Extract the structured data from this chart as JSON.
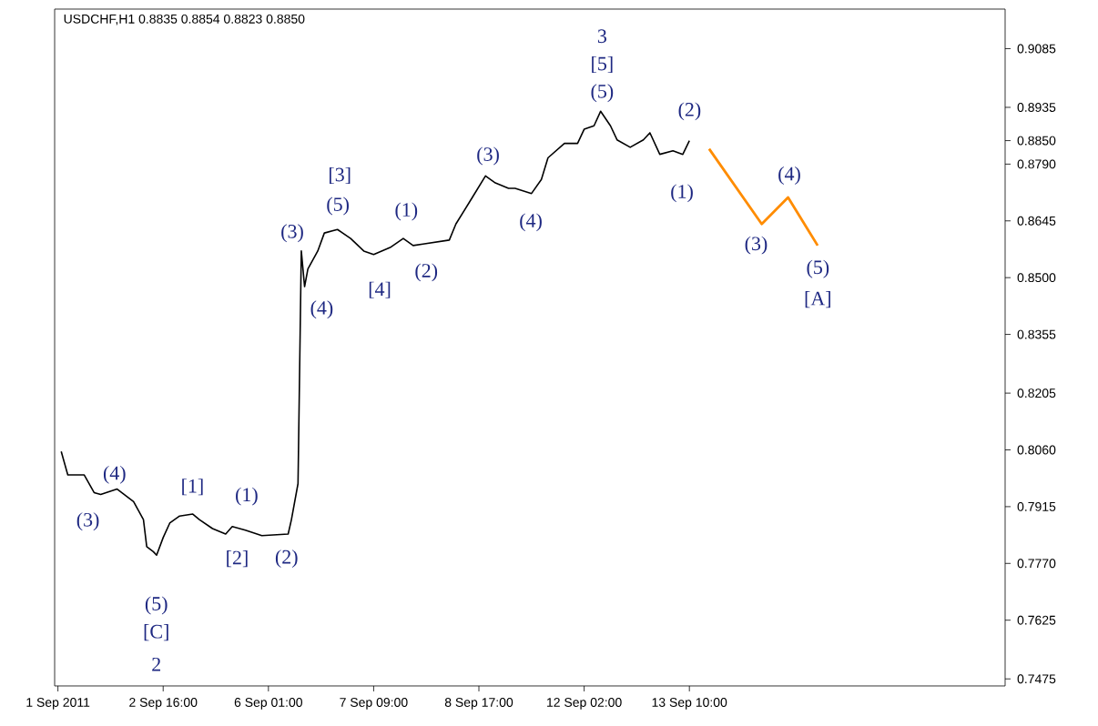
{
  "chart_data": {
    "type": "line",
    "title": "USDCHF,H1 0.8835 0.8854 0.8823 0.8850",
    "categories": [
      "1 Sep 2011",
      null,
      null,
      null,
      null,
      null,
      null,
      null,
      null,
      null,
      null,
      null,
      null,
      null,
      null,
      null,
      null,
      null,
      null,
      null,
      null,
      null,
      null,
      null,
      null,
      null,
      null,
      null,
      null,
      null,
      null,
      null,
      "2 Sep 16:00",
      null,
      null,
      null,
      null,
      null,
      null,
      null,
      null,
      null,
      null,
      null,
      null,
      null,
      null,
      null,
      null,
      null,
      null,
      null,
      null,
      null,
      null,
      null,
      null,
      null,
      null,
      null,
      null,
      null,
      null,
      null,
      "6 Sep 01:00",
      null,
      null,
      null,
      null,
      null,
      null,
      null,
      null,
      null,
      null,
      null,
      null,
      null,
      null,
      null,
      null,
      null,
      null,
      null,
      null,
      null,
      null,
      null,
      null,
      null,
      null,
      null,
      null,
      null,
      null,
      null,
      "7 Sep 09:00",
      null,
      null,
      null,
      null,
      null,
      null,
      null,
      null,
      null,
      null,
      null,
      null,
      null,
      null,
      null,
      null,
      null,
      null,
      null,
      null,
      null,
      null,
      null,
      null,
      null,
      null,
      null,
      null,
      null,
      null,
      null,
      "8 Sep 17:00",
      null,
      null,
      null,
      null,
      null,
      null,
      null,
      null,
      null,
      null,
      null,
      null,
      null,
      null,
      null,
      null,
      null,
      null,
      null,
      null,
      null,
      null,
      null,
      null,
      null,
      null,
      null,
      null,
      null,
      null,
      null,
      "12 Sep 02:00",
      null,
      null,
      null,
      null,
      null,
      null,
      null,
      null,
      null,
      null,
      null,
      null,
      null,
      null,
      null,
      null,
      null,
      null,
      null,
      null,
      null,
      null,
      null,
      null,
      null,
      null,
      null,
      null,
      null,
      null,
      null,
      "13 Sep 10:00",
      null,
      null,
      null,
      null,
      null,
      null,
      null,
      null,
      null,
      null,
      null,
      null,
      null,
      null,
      null,
      null,
      null,
      null,
      null,
      null,
      null,
      null,
      null,
      null,
      null,
      null,
      null,
      null,
      null,
      null,
      null,
      null,
      null,
      null,
      null,
      null,
      null,
      null,
      null,
      null,
      null,
      null,
      null,
      null,
      null,
      null,
      null,
      null,
      null,
      null,
      null,
      null,
      null,
      null,
      null,
      null,
      null,
      null,
      null,
      null,
      null,
      null,
      null,
      null,
      null,
      null,
      null,
      null,
      null,
      null,
      null,
      null,
      null,
      null,
      null,
      null,
      null,
      null,
      null,
      null,
      null,
      null,
      null,
      null,
      null,
      null,
      null,
      null,
      null,
      null,
      null,
      null,
      null,
      null,
      null
    ],
    "ylim": [
      0.7457,
      0.9186
    ],
    "yticks": [
      0.9085,
      0.8935,
      {
        "value": 0.885,
        "label": "0.8850"
      },
      {
        "value": 0.879,
        "label": "0.8790"
      },
      0.8645,
      {
        "value": 0.85,
        "label": "0.8500"
      },
      0.8355,
      0.8205,
      {
        "value": 0.806,
        "label": "0.8060"
      },
      0.7915,
      {
        "value": 0.777,
        "label": "0.7770"
      },
      0.7625,
      0.7475
    ],
    "marker": "none",
    "line_style": "solid",
    "series": [
      {
        "color": "#000000",
        "values": [
          null,
          0.8056,
          null,
          0.7996,
          null,
          null,
          null,
          null,
          0.7996,
          null,
          null,
          0.7951,
          null,
          0.7946,
          null,
          null,
          null,
          null,
          0.796,
          null,
          null,
          null,
          null,
          0.7928,
          null,
          null,
          0.7882,
          0.7813,
          null,
          0.78,
          0.7791,
          null,
          0.7836,
          null,
          0.7873,
          null,
          null,
          0.7891,
          null,
          null,
          null,
          0.7896,
          null,
          0.7882,
          null,
          null,
          null,
          0.7859,
          null,
          null,
          null,
          0.7845,
          null,
          0.7864,
          null,
          null,
          null,
          0.7855,
          null,
          null,
          null,
          null,
          0.7841,
          null,
          null,
          null,
          null,
          null,
          null,
          null,
          0.7845,
          0.7882,
          null,
          0.7974,
          0.8568,
          0.8477,
          0.8522,
          null,
          null,
          0.8568,
          null,
          0.8614,
          null,
          null,
          null,
          0.8623,
          null,
          null,
          null,
          0.86,
          null,
          null,
          null,
          0.8568,
          null,
          null,
          0.8559,
          null,
          null,
          null,
          null,
          0.8577,
          null,
          null,
          null,
          0.86,
          null,
          null,
          0.8582,
          null,
          null,
          0.8586,
          null,
          null,
          null,
          null,
          null,
          null,
          null,
          0.8596,
          null,
          0.8637,
          null,
          null,
          null,
          null,
          0.8705,
          null,
          null,
          null,
          0.876,
          null,
          null,
          0.8742,
          null,
          null,
          null,
          0.8728,
          null,
          0.8728,
          null,
          null,
          null,
          null,
          0.8715,
          null,
          null,
          0.8751,
          null,
          0.8806,
          null,
          null,
          null,
          null,
          0.8843,
          null,
          null,
          null,
          0.8843,
          null,
          0.8879,
          null,
          null,
          0.8888,
          null,
          0.8925,
          null,
          null,
          0.8888,
          null,
          0.8852,
          null,
          null,
          null,
          0.8833,
          null,
          null,
          null,
          0.8852,
          null,
          0.887,
          null,
          null,
          0.8815,
          null,
          null,
          null,
          0.8824,
          null,
          null,
          0.8815,
          null,
          0.885,
          null,
          null,
          null,
          null,
          null,
          null,
          null,
          null,
          null,
          null,
          null,
          null,
          null,
          null,
          null,
          null,
          null,
          null,
          null,
          null,
          null,
          null,
          null,
          null,
          null,
          null,
          null,
          null,
          null,
          null,
          null,
          null,
          null,
          null,
          null,
          null,
          null,
          null,
          null,
          null,
          null,
          null,
          null,
          null,
          null,
          null,
          null,
          null,
          null,
          null,
          null,
          null,
          null,
          null,
          null,
          null,
          null,
          null,
          null,
          null,
          null,
          null,
          null,
          null,
          null,
          null,
          null,
          null,
          null,
          null,
          null,
          null,
          null,
          null,
          null,
          null,
          null,
          null,
          null,
          null,
          null,
          null,
          null,
          null,
          null,
          null,
          null,
          null,
          null,
          null,
          null,
          null,
          null,
          null,
          null
        ]
      },
      {
        "color": "#ff8c00",
        "values": [
          null,
          null,
          null,
          null,
          null,
          null,
          null,
          null,
          null,
          null,
          null,
          null,
          null,
          null,
          null,
          null,
          null,
          null,
          null,
          null,
          null,
          null,
          null,
          null,
          null,
          null,
          null,
          null,
          null,
          null,
          null,
          null,
          null,
          null,
          null,
          null,
          null,
          null,
          null,
          null,
          null,
          null,
          null,
          null,
          null,
          null,
          null,
          null,
          null,
          null,
          null,
          null,
          null,
          null,
          null,
          null,
          null,
          null,
          null,
          null,
          null,
          null,
          null,
          null,
          null,
          null,
          null,
          null,
          null,
          null,
          null,
          null,
          null,
          null,
          null,
          null,
          null,
          null,
          null,
          null,
          null,
          null,
          null,
          null,
          null,
          null,
          null,
          null,
          null,
          null,
          null,
          null,
          null,
          null,
          null,
          null,
          null,
          null,
          null,
          null,
          null,
          null,
          null,
          null,
          null,
          null,
          null,
          null,
          null,
          null,
          null,
          null,
          null,
          null,
          null,
          null,
          null,
          null,
          null,
          null,
          null,
          null,
          null,
          null,
          null,
          null,
          null,
          null,
          null,
          null,
          null,
          null,
          null,
          null,
          null,
          null,
          null,
          null,
          null,
          null,
          null,
          null,
          null,
          null,
          null,
          null,
          null,
          null,
          null,
          null,
          null,
          null,
          null,
          null,
          null,
          null,
          null,
          null,
          null,
          null,
          null,
          null,
          null,
          null,
          null,
          null,
          null,
          null,
          null,
          null,
          null,
          null,
          null,
          null,
          null,
          null,
          null,
          null,
          null,
          null,
          null,
          null,
          null,
          null,
          null,
          null,
          null,
          null,
          null,
          null,
          null,
          null,
          null,
          null,
          null,
          null,
          null,
          null,
          0.8829,
          null,
          null,
          null,
          null,
          null,
          null,
          null,
          null,
          null,
          null,
          null,
          null,
          null,
          null,
          null,
          0.8637,
          null,
          null,
          null,
          null,
          null,
          null,
          null,
          0.8705,
          null,
          null,
          null,
          null,
          null,
          null,
          null,
          null,
          0.8582,
          null,
          null,
          null,
          null,
          null,
          null,
          null,
          null,
          null,
          null,
          null,
          null,
          null,
          null,
          null,
          null,
          null,
          null,
          null,
          null,
          null,
          null,
          null,
          null,
          null,
          null,
          null,
          null,
          null,
          null,
          null,
          null,
          null,
          null,
          null,
          null,
          null,
          null,
          null,
          null,
          null,
          null,
          null,
          null,
          null,
          null,
          null,
          null,
          null,
          null,
          null,
          null,
          null,
          null,
          null,
          null
        ]
      }
    ],
    "annotations": [
      "(3)",
      "(4)",
      "(5)",
      "[C]",
      "2",
      "[1]",
      "[2]",
      "(1)",
      "(2)",
      "(3)",
      "(4)",
      "(5)",
      "[3]",
      "[4]",
      "(1)",
      "(2)",
      "(3)",
      "(4)",
      "(5)",
      "[5]",
      "3",
      "(2)",
      "(1)",
      "(3)",
      "(4)",
      "(5)",
      "[A]"
    ]
  }
}
